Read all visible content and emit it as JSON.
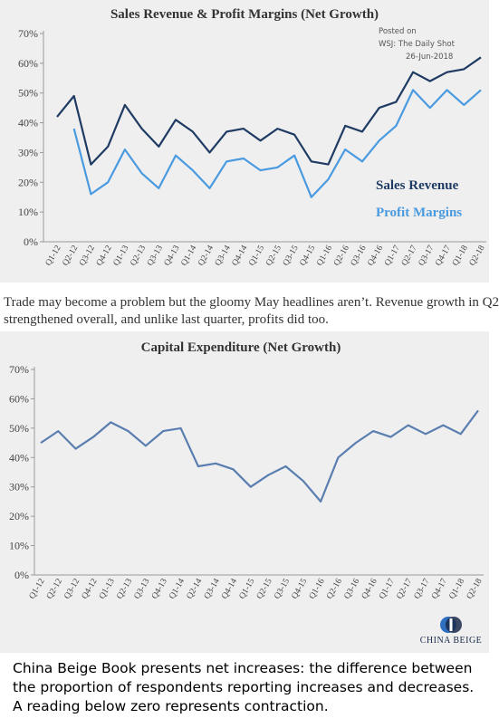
{
  "charts": [
    {
      "title": "Sales Revenue & Profit Margins (Net Growth)",
      "posted": [
        "Posted on",
        "WSJ: The Daily Shot",
        "26-Jun-2018"
      ],
      "chart_data": {
        "type": "line",
        "title": "Sales Revenue & Profit Margins (Net Growth)",
        "categories": [
          "Q1-12",
          "Q2-12",
          "Q3-12",
          "Q4-12",
          "Q1-13",
          "Q2-13",
          "Q3-13",
          "Q4-13",
          "Q1-14",
          "Q2-14",
          "Q3-14",
          "Q4-14",
          "Q1-15",
          "Q2-15",
          "Q3-15",
          "Q4-15",
          "Q1-16",
          "Q2-16",
          "Q3-16",
          "Q4-16",
          "Q1-17",
          "Q2-17",
          "Q3-17",
          "Q4-17",
          "Q1-18",
          "Q2-18"
        ],
        "yticks": [
          "0%",
          "10%",
          "20%",
          "30%",
          "40%",
          "50%",
          "60%",
          "70%"
        ],
        "ylim": [
          0,
          70
        ],
        "series": [
          {
            "name": "Sales Revenue",
            "color": "#1f3b63",
            "values": [
              42,
              49,
              26,
              32,
              46,
              38,
              32,
              41,
              37,
              30,
              37,
              38,
              34,
              38,
              36,
              27,
              26,
              39,
              37,
              45,
              47,
              57,
              54,
              57,
              58,
              62
            ]
          },
          {
            "name": "Profit Margins",
            "color": "#4a9ae0",
            "values": [
              null,
              38,
              16,
              20,
              31,
              23,
              18,
              29,
              24,
              18,
              27,
              28,
              24,
              25,
              29,
              15,
              21,
              31,
              27,
              34,
              39,
              51,
              45,
              51,
              46,
              51
            ]
          }
        ]
      }
    },
    {
      "title": "Capital Expenditure (Net Growth)",
      "chart_data": {
        "type": "line",
        "title": "Capital Expenditure (Net Growth)",
        "categories": [
          "Q1-12",
          "Q2-12",
          "Q3-12",
          "Q4-12",
          "Q1-13",
          "Q2-13",
          "Q3-13",
          "Q4-13",
          "Q1-14",
          "Q2-14",
          "Q3-14",
          "Q4-14",
          "Q1-15",
          "Q2-15",
          "Q3-15",
          "Q4-15",
          "Q1-16",
          "Q2-16",
          "Q3-16",
          "Q4-16",
          "Q1-17",
          "Q2-17",
          "Q3-17",
          "Q4-17",
          "Q1-18",
          "Q2-18"
        ],
        "yticks": [
          "0%",
          "10%",
          "20%",
          "30%",
          "40%",
          "50%",
          "60%",
          "70%"
        ],
        "ylim": [
          0,
          70
        ],
        "series": [
          {
            "color": "#5a7eb0",
            "values": [
              45,
              49,
              43,
              47,
              52,
              49,
              44,
              49,
              50,
              37,
              38,
              36,
              30,
              34,
              37,
              32,
              25,
              40,
              45,
              49,
              47,
              51,
              48,
              51,
              48,
              56
            ]
          }
        ]
      }
    }
  ],
  "note": "Trade may become a problem but the gloomy May headlines aren’t. Revenue growth in Q2 strengthened overall, and unlike last quarter, profits did too.",
  "note_lines": [
    "Trade may become a problem but the gloomy May headlines aren’t. Revenue growth in Q2",
    "strengthened overall, and unlike last quarter, profits did too."
  ],
  "logo": {
    "text": "CHINA BEIGE",
    "color": "#2f6fc0"
  },
  "footer_lines": [
    "China Beige Book presents net increases: the difference between",
    "the proportion of respondents reporting increases and decreases.",
    "A reading below zero represents contraction."
  ]
}
